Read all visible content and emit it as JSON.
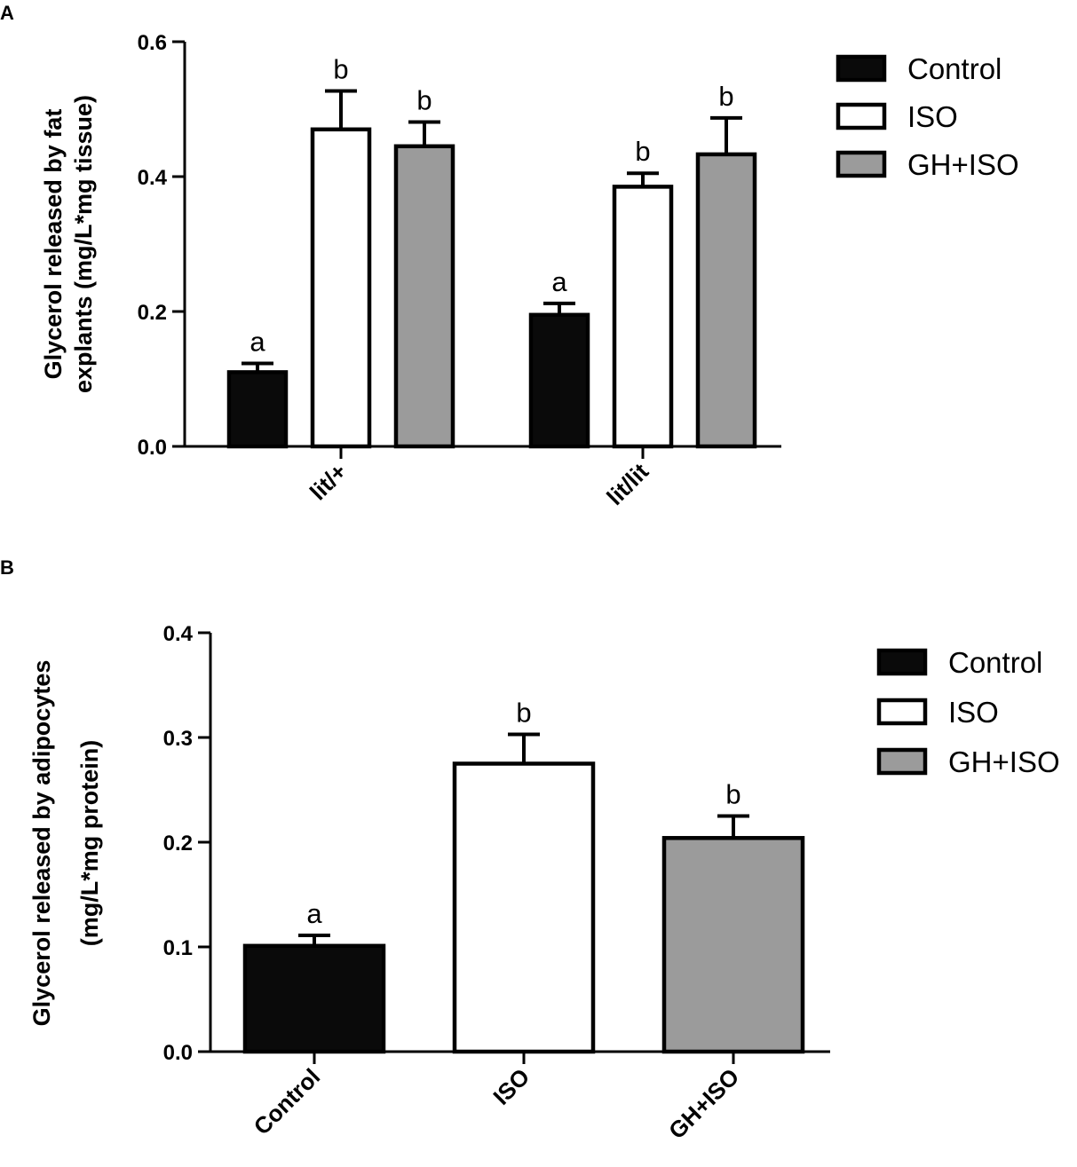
{
  "colors": {
    "Control": "#0a0a0a",
    "ISO": "#ffffff",
    "GH+ISO": "#9b9b9b",
    "stroke": "#000000"
  },
  "chart_data": [
    {
      "panel": "A",
      "type": "bar",
      "ylabel_lines": [
        "Glycerol released by fat",
        "explants (mg/L*mg tissue)"
      ],
      "ylim": [
        0,
        0.6
      ],
      "yticks": [
        "0.0",
        "0.2",
        "0.4",
        "0.6"
      ],
      "ytick_values": [
        0,
        0.2,
        0.4,
        0.6
      ],
      "categories": [
        "lit/+",
        "lit/lit"
      ],
      "series": [
        {
          "name": "Control",
          "values": [
            0.11,
            0.195
          ],
          "errors": [
            0.013,
            0.017
          ],
          "sig": [
            "a",
            "a"
          ]
        },
        {
          "name": "ISO",
          "values": [
            0.47,
            0.385
          ],
          "errors": [
            0.057,
            0.02
          ],
          "sig": [
            "b",
            "b"
          ]
        },
        {
          "name": "GH+ISO",
          "values": [
            0.445,
            0.433
          ],
          "errors": [
            0.036,
            0.054
          ],
          "sig": [
            "b",
            "b"
          ]
        }
      ],
      "legend": [
        "Control",
        "ISO",
        "GH+ISO"
      ],
      "legend_position": "top-right",
      "grid": false
    },
    {
      "panel": "B",
      "type": "bar",
      "ylabel_lines": [
        "Glycerol released by adipocytes",
        "(mg/L*mg protein)"
      ],
      "ylim": [
        0,
        0.4
      ],
      "yticks": [
        "0.0",
        "0.1",
        "0.2",
        "0.3",
        "0.4"
      ],
      "ytick_values": [
        0,
        0.1,
        0.2,
        0.3,
        0.4
      ],
      "categories": [
        "Control",
        "ISO",
        "GH+ISO"
      ],
      "values": [
        0.101,
        0.275,
        0.204
      ],
      "errors": [
        0.01,
        0.028,
        0.021
      ],
      "sig": [
        "a",
        "b",
        "b"
      ],
      "legend": [
        "Control",
        "ISO",
        "GH+ISO"
      ],
      "legend_position": "top-right",
      "grid": false
    }
  ]
}
